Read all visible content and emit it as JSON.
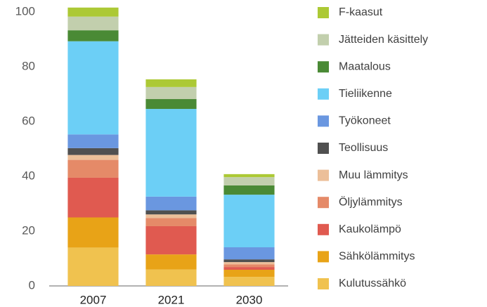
{
  "chart_data": {
    "type": "stacked_bar",
    "categories": [
      "2007",
      "2021",
      "2030"
    ],
    "ylim": [
      0,
      100
    ],
    "yticks": [
      0,
      20,
      40,
      60,
      80,
      100
    ],
    "series": [
      {
        "name": "Kulutussähkö",
        "color": "#f0c24f",
        "values": [
          14,
          6,
          3.3
        ]
      },
      {
        "name": "Sähkölämmitys",
        "color": "#e8a317",
        "values": [
          11,
          5.5,
          2.6
        ]
      },
      {
        "name": "Kaukolämpö",
        "color": "#e05a50",
        "values": [
          14.5,
          10.3,
          1
        ]
      },
      {
        "name": "Öljylämmitys",
        "color": "#e58a68",
        "values": [
          6.5,
          3,
          1
        ]
      },
      {
        "name": "Muu lämmitys",
        "color": "#ecbf99",
        "values": [
          1.8,
          1.3,
          0.8
        ]
      },
      {
        "name": "Teollisuus",
        "color": "#505050",
        "values": [
          2.5,
          1.5,
          1
        ]
      },
      {
        "name": "Työkoneet",
        "color": "#6a97e0",
        "values": [
          5,
          5,
          4.4
        ]
      },
      {
        "name": "Tieliikenne",
        "color": "#6ccff6",
        "values": [
          34,
          32,
          19.2
        ]
      },
      {
        "name": "Maatalous",
        "color": "#4a8a35",
        "values": [
          4,
          3.6,
          3.4
        ]
      },
      {
        "name": "Jätteiden käsittely",
        "color": "#c2cfad",
        "values": [
          5,
          4.4,
          3
        ]
      },
      {
        "name": "F-kaasut",
        "color": "#acc935",
        "values": [
          3.3,
          2.8,
          1.1
        ]
      }
    ]
  }
}
